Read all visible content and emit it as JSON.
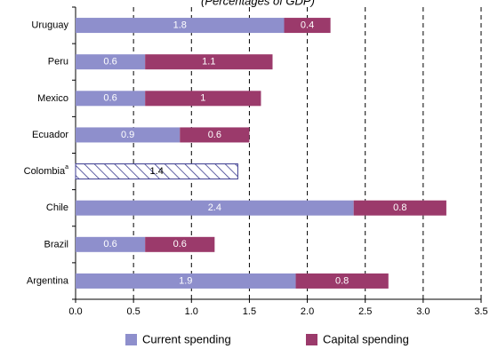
{
  "chart_data": {
    "type": "stacked_bar_horizontal",
    "title": "(Percentages of GDP)",
    "categories": [
      "Uruguay",
      "Peru",
      "Mexico",
      "Ecuador",
      "Colombia",
      "Chile",
      "Brazil",
      "Argentina"
    ],
    "footnote_markers": [
      null,
      null,
      null,
      null,
      "a",
      null,
      null,
      null
    ],
    "series": [
      {
        "name": "Current spending",
        "color": "#8e8fcc",
        "values": [
          1.8,
          0.6,
          0.6,
          0.9,
          1.4,
          2.4,
          0.6,
          1.9
        ],
        "hatched": [
          false,
          false,
          false,
          false,
          true,
          false,
          false,
          false
        ]
      },
      {
        "name": "Capital spending",
        "color": "#9b3a6b",
        "values": [
          0.4,
          1.1,
          1.0,
          0.6,
          null,
          0.8,
          0.6,
          0.8
        ]
      }
    ],
    "xlim": [
      0,
      3.5
    ],
    "xticks": [
      {
        "value": 0,
        "label": "0.0"
      },
      0.5,
      {
        "value": 1,
        "label": "1.0"
      },
      1.5,
      {
        "value": 2,
        "label": "2.0"
      },
      2.5,
      {
        "value": 3,
        "label": "3.0"
      },
      3.5
    ],
    "grid": true,
    "legend": "bottom"
  }
}
